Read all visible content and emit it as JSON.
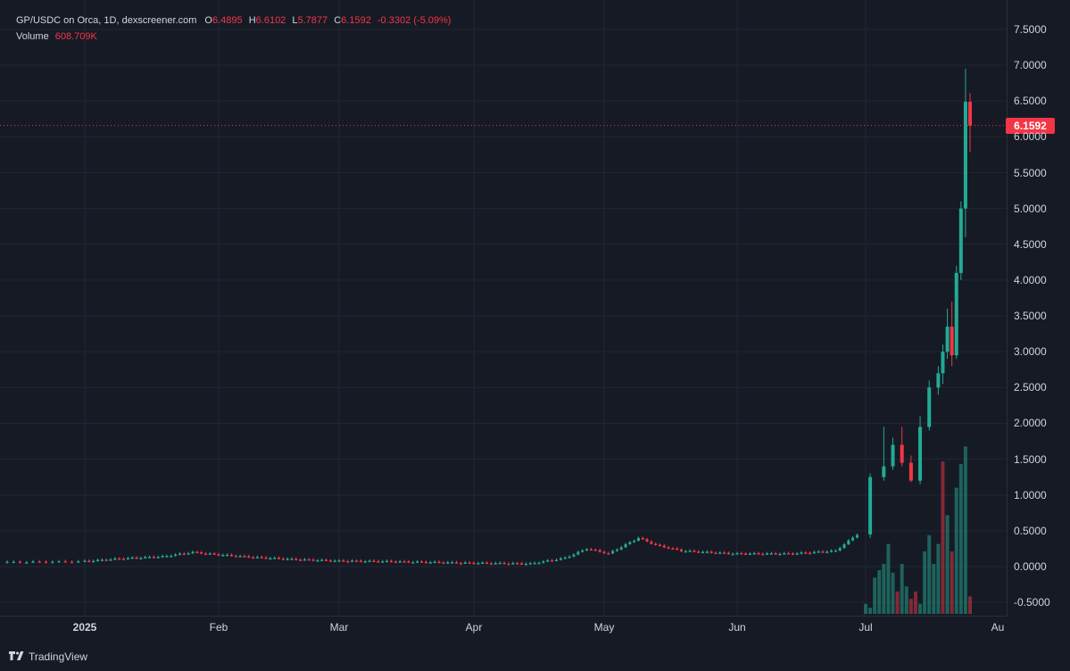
{
  "legend": {
    "symbol": "GP/USDC on Orca, 1D, dexscreener.com",
    "o_label": "O",
    "o_value": "6.4895",
    "h_label": "H",
    "h_value": "6.6102",
    "l_label": "L",
    "l_value": "5.7877",
    "c_label": "C",
    "c_value": "6.1592",
    "change": "-0.3302 (-5.09%)",
    "volume_label": "Volume",
    "volume_value": "608.709K"
  },
  "last_price_tag": "6.1592",
  "brand": "TradingView",
  "colors": {
    "up": "#22ab94",
    "down": "#f23645",
    "background": "#161a25",
    "grid": "#232632"
  },
  "chart_data": {
    "type": "candlestick",
    "title": "GP/USDC on Orca, 1D",
    "y_ticks": [
      "7.5000",
      "7.0000",
      "6.5000",
      "6.0000",
      "5.5000",
      "5.0000",
      "4.5000",
      "4.0000",
      "3.5000",
      "3.0000",
      "2.5000",
      "2.0000",
      "1.5000",
      "1.0000",
      "0.5000",
      "0.0000",
      "-0.5000"
    ],
    "x_ticks": [
      "2025",
      "Feb",
      "Mar",
      "Apr",
      "May",
      "Jun",
      "Jul",
      "Au"
    ],
    "ylim": [
      -0.65,
      7.75
    ],
    "last_price": 6.1592,
    "x_dates": [
      "2024-12-20",
      "2025-01-01",
      "2025-02-01",
      "2025-03-01",
      "2025-04-01",
      "2025-05-01",
      "2025-06-01",
      "2025-07-01",
      "2025-07-24"
    ],
    "note_scale": "values in USDC",
    "candles": [
      {
        "d": "2024-12-20",
        "o": 0.06,
        "h": 0.07,
        "l": 0.05,
        "c": 0.06
      },
      {
        "d": "2025-01-01",
        "o": 0.06,
        "h": 0.08,
        "l": 0.05,
        "c": 0.07
      },
      {
        "d": "2025-01-10",
        "o": 0.07,
        "h": 0.12,
        "l": 0.06,
        "c": 0.11
      },
      {
        "d": "2025-01-20",
        "o": 0.12,
        "h": 0.16,
        "l": 0.11,
        "c": 0.14
      },
      {
        "d": "2025-01-27",
        "o": 0.15,
        "h": 0.22,
        "l": 0.14,
        "c": 0.2
      },
      {
        "d": "2025-02-01",
        "o": 0.2,
        "h": 0.22,
        "l": 0.16,
        "c": 0.17
      },
      {
        "d": "2025-02-10",
        "o": 0.16,
        "h": 0.18,
        "l": 0.12,
        "c": 0.13
      },
      {
        "d": "2025-02-20",
        "o": 0.12,
        "h": 0.14,
        "l": 0.09,
        "c": 0.1
      },
      {
        "d": "2025-03-01",
        "o": 0.09,
        "h": 0.1,
        "l": 0.07,
        "c": 0.08
      },
      {
        "d": "2025-03-15",
        "o": 0.08,
        "h": 0.09,
        "l": 0.06,
        "c": 0.07
      },
      {
        "d": "2025-04-01",
        "o": 0.06,
        "h": 0.07,
        "l": 0.04,
        "c": 0.05
      },
      {
        "d": "2025-04-15",
        "o": 0.05,
        "h": 0.06,
        "l": 0.03,
        "c": 0.04
      },
      {
        "d": "2025-04-23",
        "o": 0.05,
        "h": 0.14,
        "l": 0.04,
        "c": 0.12
      },
      {
        "d": "2025-04-28",
        "o": 0.15,
        "h": 0.28,
        "l": 0.14,
        "c": 0.25
      },
      {
        "d": "2025-05-03",
        "o": 0.2,
        "h": 0.24,
        "l": 0.15,
        "c": 0.18
      },
      {
        "d": "2025-05-10",
        "o": 0.22,
        "h": 0.5,
        "l": 0.2,
        "c": 0.4
      },
      {
        "d": "2025-05-14",
        "o": 0.4,
        "h": 0.45,
        "l": 0.28,
        "c": 0.3
      },
      {
        "d": "2025-05-20",
        "o": 0.28,
        "h": 0.3,
        "l": 0.2,
        "c": 0.22
      },
      {
        "d": "2025-06-01",
        "o": 0.2,
        "h": 0.24,
        "l": 0.16,
        "c": 0.18
      },
      {
        "d": "2025-06-15",
        "o": 0.16,
        "h": 0.2,
        "l": 0.14,
        "c": 0.18
      },
      {
        "d": "2025-06-25",
        "o": 0.18,
        "h": 0.25,
        "l": 0.16,
        "c": 0.22
      },
      {
        "d": "2025-06-30",
        "o": 0.22,
        "h": 0.5,
        "l": 0.2,
        "c": 0.45
      },
      {
        "d": "2025-07-02",
        "o": 0.45,
        "h": 1.3,
        "l": 0.4,
        "c": 1.25
      },
      {
        "d": "2025-07-05",
        "o": 1.25,
        "h": 1.95,
        "l": 1.2,
        "c": 1.4
      },
      {
        "d": "2025-07-07",
        "o": 1.4,
        "h": 1.8,
        "l": 1.35,
        "c": 1.7
      },
      {
        "d": "2025-07-09",
        "o": 1.7,
        "h": 1.95,
        "l": 1.4,
        "c": 1.45
      },
      {
        "d": "2025-07-11",
        "o": 1.45,
        "h": 1.55,
        "l": 1.18,
        "c": 1.2
      },
      {
        "d": "2025-07-13",
        "o": 1.2,
        "h": 2.1,
        "l": 1.15,
        "c": 1.95
      },
      {
        "d": "2025-07-15",
        "o": 1.95,
        "h": 2.6,
        "l": 1.9,
        "c": 2.5
      },
      {
        "d": "2025-07-17",
        "o": 2.5,
        "h": 2.8,
        "l": 2.4,
        "c": 2.7
      },
      {
        "d": "2025-07-18",
        "o": 2.7,
        "h": 3.1,
        "l": 2.55,
        "c": 3.0
      },
      {
        "d": "2025-07-19",
        "o": 3.0,
        "h": 3.6,
        "l": 2.9,
        "c": 3.35
      },
      {
        "d": "2025-07-20",
        "o": 3.35,
        "h": 3.7,
        "l": 2.8,
        "c": 2.95
      },
      {
        "d": "2025-07-21",
        "o": 2.95,
        "h": 4.2,
        "l": 2.9,
        "c": 4.1
      },
      {
        "d": "2025-07-22",
        "o": 4.1,
        "h": 5.1,
        "l": 4.0,
        "c": 5.0
      },
      {
        "d": "2025-07-23",
        "o": 5.0,
        "h": 6.95,
        "l": 4.6,
        "c": 6.49
      },
      {
        "d": "2025-07-24",
        "o": 6.4895,
        "h": 6.6102,
        "l": 5.7877,
        "c": 6.1592
      }
    ],
    "volume_series": {
      "name": "Volume",
      "last": "608.709K"
    }
  }
}
